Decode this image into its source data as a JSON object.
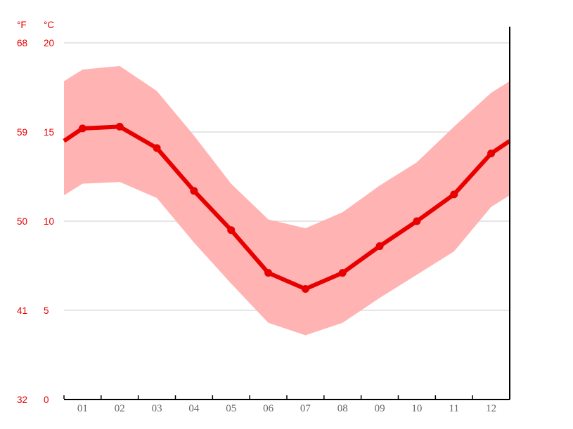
{
  "chart_data": {
    "type": "line",
    "title": "",
    "description": "Monthly average temperature with min-max range band",
    "categories": [
      "01",
      "02",
      "03",
      "04",
      "05",
      "06",
      "07",
      "08",
      "09",
      "10",
      "11",
      "12"
    ],
    "series": [
      {
        "name": "mean_temperature_c",
        "role": "line",
        "values": [
          15.2,
          15.3,
          14.1,
          11.7,
          9.5,
          7.1,
          6.2,
          7.1,
          8.6,
          10.0,
          11.5,
          13.8
        ]
      },
      {
        "name": "max_temperature_c",
        "role": "band_upper",
        "values": [
          18.5,
          18.7,
          17.3,
          14.8,
          12.1,
          10.1,
          9.6,
          10.5,
          12.0,
          13.3,
          15.3,
          17.2
        ]
      },
      {
        "name": "min_temperature_c",
        "role": "band_lower",
        "values": [
          12.1,
          12.2,
          11.3,
          8.8,
          6.5,
          4.3,
          3.6,
          4.3,
          5.7,
          7.0,
          8.3,
          10.8
        ]
      }
    ],
    "y_axis_left_fahrenheit": {
      "label": "°F",
      "ticks": [
        68,
        59,
        50,
        41,
        32
      ]
    },
    "y_axis_right_celsius": {
      "label": "°C",
      "ticks": [
        20,
        15,
        10,
        5,
        0
      ]
    },
    "ylim_celsius": [
      0,
      20
    ],
    "grid": true,
    "legend_position": "none"
  },
  "colors": {
    "line": "#e80000",
    "band": "#ffb3b3",
    "axis_text": "#e60000",
    "month_text": "#666666",
    "gridline": "#cccccc",
    "axis_line": "#000000"
  },
  "labels": {
    "fahrenheit_header": "°F",
    "celsius_header": "°C"
  }
}
